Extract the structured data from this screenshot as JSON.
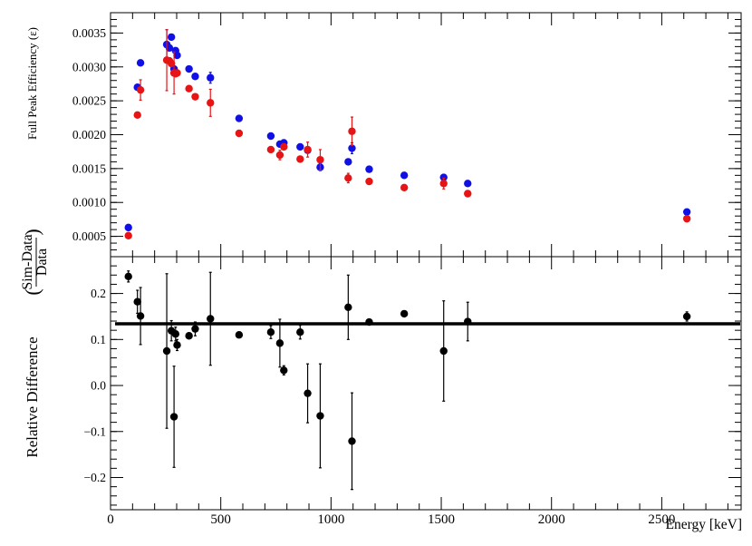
{
  "chart_data": [
    {
      "type": "scatter",
      "ylabel": "Full Peak Efficiency (ε)",
      "xlim": [
        0,
        2860
      ],
      "ylim": [
        0.0002,
        0.0038
      ],
      "y_ticks": [
        "0.0005",
        "0.0010",
        "0.0015",
        "0.0020",
        "0.0025",
        "0.0030",
        "0.0035"
      ],
      "colors": {
        "series_a": "#1010e6",
        "series_b": "#e61414"
      },
      "series": [
        {
          "key": "series_a",
          "color": "#1010e6",
          "points": [
            {
              "x": 81,
              "y": 0.00063
            },
            {
              "x": 122,
              "y": 0.0027
            },
            {
              "x": 136,
              "y": 0.00306
            },
            {
              "x": 255,
              "y": 0.00333,
              "err": 0.00022
            },
            {
              "x": 267,
              "y": 0.00328
            },
            {
              "x": 276,
              "y": 0.00344
            },
            {
              "x": 288,
              "y": 0.00297
            },
            {
              "x": 295,
              "y": 0.00324
            },
            {
              "x": 302,
              "y": 0.00317
            },
            {
              "x": 356,
              "y": 0.00297
            },
            {
              "x": 384,
              "y": 0.00286
            },
            {
              "x": 453,
              "y": 0.00284,
              "err": 8e-05
            },
            {
              "x": 583,
              "y": 0.00224
            },
            {
              "x": 727,
              "y": 0.00198
            },
            {
              "x": 768,
              "y": 0.00186
            },
            {
              "x": 786,
              "y": 0.00188
            },
            {
              "x": 860,
              "y": 0.00182
            },
            {
              "x": 894,
              "y": 0.00177
            },
            {
              "x": 951,
              "y": 0.00152,
              "err": 5e-05
            },
            {
              "x": 1078,
              "y": 0.0016
            },
            {
              "x": 1095,
              "y": 0.0018,
              "err": 8e-05
            },
            {
              "x": 1173,
              "y": 0.00149
            },
            {
              "x": 1332,
              "y": 0.0014
            },
            {
              "x": 1511,
              "y": 0.00137,
              "err": 4e-05
            },
            {
              "x": 1620,
              "y": 0.00128
            },
            {
              "x": 2614,
              "y": 0.00086
            }
          ]
        },
        {
          "key": "series_b",
          "color": "#e61414",
          "points": [
            {
              "x": 81,
              "y": 0.00051
            },
            {
              "x": 122,
              "y": 0.00229
            },
            {
              "x": 136,
              "y": 0.00266,
              "err": 0.00015
            },
            {
              "x": 255,
              "y": 0.0031,
              "err": 0.00045
            },
            {
              "x": 267,
              "y": 0.00309
            },
            {
              "x": 276,
              "y": 0.00305
            },
            {
              "x": 288,
              "y": 0.00291,
              "err": 0.00031
            },
            {
              "x": 295,
              "y": 0.0029
            },
            {
              "x": 302,
              "y": 0.00291
            },
            {
              "x": 356,
              "y": 0.00268
            },
            {
              "x": 384,
              "y": 0.00256
            },
            {
              "x": 453,
              "y": 0.00247,
              "err": 0.0002
            },
            {
              "x": 583,
              "y": 0.00202
            },
            {
              "x": 727,
              "y": 0.00178
            },
            {
              "x": 768,
              "y": 0.0017,
              "err": 7e-05
            },
            {
              "x": 786,
              "y": 0.00182
            },
            {
              "x": 860,
              "y": 0.00164
            },
            {
              "x": 894,
              "y": 0.00178,
              "err": 0.00011
            },
            {
              "x": 951,
              "y": 0.00163,
              "err": 0.00015
            },
            {
              "x": 1078,
              "y": 0.00136,
              "err": 7e-05
            },
            {
              "x": 1095,
              "y": 0.00205,
              "err": 0.00021
            },
            {
              "x": 1173,
              "y": 0.00131
            },
            {
              "x": 1332,
              "y": 0.00122
            },
            {
              "x": 1511,
              "y": 0.00128,
              "err": 8e-05
            },
            {
              "x": 1620,
              "y": 0.00113
            },
            {
              "x": 2614,
              "y": 0.00076
            }
          ]
        }
      ]
    },
    {
      "type": "scatter",
      "xlabel": "Energy [keV]",
      "ylabel_prefix": "Relative Difference",
      "ylabel_numerator": "Sim-Data",
      "ylabel_denominator": "Data",
      "xlim": [
        0,
        2860
      ],
      "ylim": [
        -0.27,
        0.28
      ],
      "x_ticks": [
        "0",
        "500",
        "1000",
        "1500",
        "2000",
        "2500"
      ],
      "y_ticks": [
        "−0.2",
        "−0.1",
        "0.0",
        "0.1",
        "0.2"
      ],
      "reference_line": 0.134,
      "series": [
        {
          "key": "relative_difference",
          "color": "#000000",
          "points": [
            {
              "x": 81,
              "y": 0.237,
              "err": 0.012
            },
            {
              "x": 122,
              "y": 0.182,
              "err": 0.025
            },
            {
              "x": 136,
              "y": 0.151,
              "err": 0.062
            },
            {
              "x": 255,
              "y": 0.075,
              "err": 0.168
            },
            {
              "x": 276,
              "y": 0.119,
              "err": 0.022
            },
            {
              "x": 288,
              "y": -0.068,
              "err": 0.11
            },
            {
              "x": 295,
              "y": 0.112,
              "err": 0.015
            },
            {
              "x": 302,
              "y": 0.088,
              "err": 0.012
            },
            {
              "x": 356,
              "y": 0.108
            },
            {
              "x": 384,
              "y": 0.123,
              "err": 0.015
            },
            {
              "x": 453,
              "y": 0.145,
              "err": 0.101
            },
            {
              "x": 583,
              "y": 0.11
            },
            {
              "x": 727,
              "y": 0.116,
              "err": 0.014
            },
            {
              "x": 768,
              "y": 0.092,
              "err": 0.052
            },
            {
              "x": 786,
              "y": 0.033,
              "err": 0.01
            },
            {
              "x": 860,
              "y": 0.116,
              "err": 0.015
            },
            {
              "x": 894,
              "y": -0.017,
              "err": 0.064
            },
            {
              "x": 951,
              "y": -0.066,
              "err": 0.113
            },
            {
              "x": 1078,
              "y": 0.17,
              "err": 0.07
            },
            {
              "x": 1095,
              "y": -0.121,
              "err": 0.105
            },
            {
              "x": 1173,
              "y": 0.138
            },
            {
              "x": 1332,
              "y": 0.156
            },
            {
              "x": 1511,
              "y": 0.075,
              "err": 0.109
            },
            {
              "x": 1620,
              "y": 0.139,
              "err": 0.042
            },
            {
              "x": 2614,
              "y": 0.15,
              "err": 0.01
            }
          ]
        }
      ]
    }
  ]
}
